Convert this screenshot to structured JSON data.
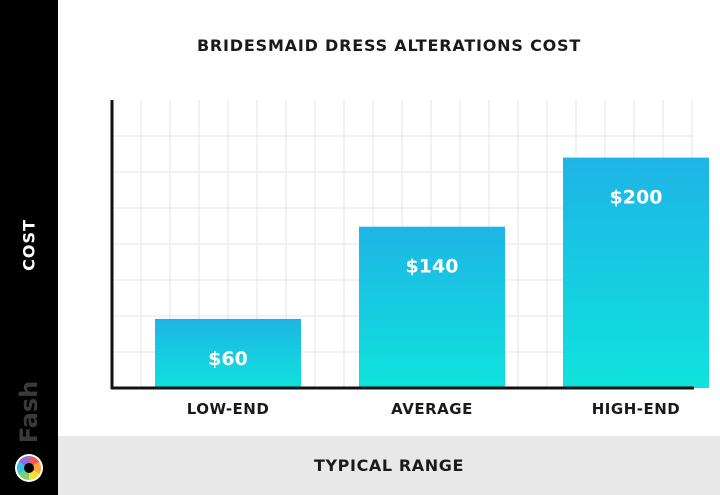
{
  "chart_data": {
    "type": "bar",
    "title": "BRIDESMAID DRESS ALTERATIONS COST",
    "xlabel": "TYPICAL RANGE",
    "ylabel": "COST",
    "categories": [
      "LOW-END",
      "AVERAGE",
      "HIGH-END"
    ],
    "values": [
      60,
      140,
      200
    ],
    "value_labels": [
      "$60",
      "$140",
      "$200"
    ],
    "ylim": [
      0,
      250
    ],
    "grid": true,
    "bar_gradient": {
      "top": "#1eb4e6",
      "bottom": "#0fe3dc"
    }
  },
  "brand": {
    "name": "Fash",
    "logo_icon": "camera-aperture-icon"
  },
  "colors": {
    "sidebar": "#000000",
    "footer": "#e8e8e8",
    "text": "#1a1a1a",
    "grid": "#e6e6e6"
  }
}
